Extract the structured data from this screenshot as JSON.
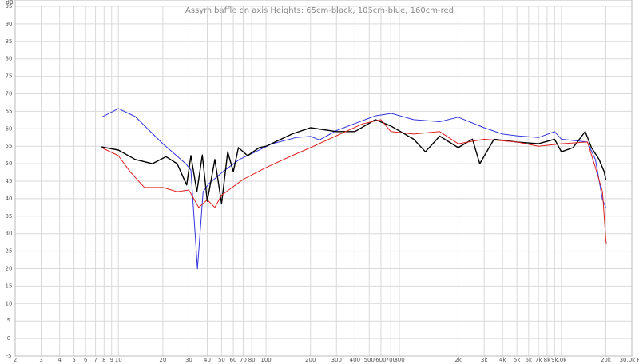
{
  "chart_data": {
    "type": "line",
    "title": "Assym baffle on axis Heights: 65cm-black, 105cm-blue, 160cm-red",
    "y_label": "dB",
    "x_scale": "log",
    "grid": true,
    "xlim": [
      2,
      30000
    ],
    "ylim": [
      -5,
      95
    ],
    "xticks": [
      2,
      3,
      4,
      5,
      6,
      7,
      8,
      9,
      10,
      20,
      30,
      40,
      50,
      60,
      70,
      80,
      100,
      200,
      300,
      400,
      500,
      600,
      700,
      800,
      {
        "value": 2000,
        "label": "2k"
      },
      {
        "value": 3000,
        "label": "3k"
      },
      {
        "value": 4000,
        "label": "4k"
      },
      {
        "value": 5000,
        "label": "5k"
      },
      {
        "value": 6000,
        "label": "6k"
      },
      {
        "value": 7000,
        "label": "7k"
      },
      {
        "value": 8000,
        "label": "8k"
      },
      {
        "value": 9000,
        "label": "9k"
      },
      {
        "value": 10000,
        "label": "10k"
      },
      {
        "value": 20000,
        "label": "20k"
      },
      {
        "value": 30000,
        "label": "30,0k Hz"
      }
    ],
    "yticks": [
      -5,
      0,
      5,
      10,
      15,
      20,
      25,
      30,
      35,
      40,
      45,
      50,
      55,
      60,
      65,
      70,
      75,
      80,
      85,
      90,
      95
    ],
    "series": [
      {
        "color": "#3333dd",
        "x": [
          7.7,
          10,
          13,
          20,
          28.6,
          31,
          34.3,
          37.5,
          41,
          51,
          66,
          85,
          110,
          160,
          200,
          230,
          300,
          400,
          550,
          706,
          1000,
          1500,
          2000,
          3000,
          4000,
          5000,
          7000,
          9000,
          10000,
          15000,
          17000,
          19000,
          20000
        ],
        "values": [
          63.3,
          65.8,
          63.5,
          55.7,
          50,
          48.2,
          19.9,
          42,
          44.3,
          47.7,
          51.2,
          53.4,
          55.7,
          57.5,
          57.8,
          56.8,
          59.5,
          61.5,
          63.7,
          64.4,
          62.6,
          62,
          63.3,
          60.3,
          58.5,
          58,
          57.5,
          59.2,
          57,
          56.2,
          51.2,
          39.7,
          37.5
        ]
      },
      {
        "color": "#000000",
        "x": [
          7.7,
          10,
          13,
          17,
          21,
          25,
          29,
          31,
          34,
          37,
          40,
          45,
          50,
          55,
          60,
          65,
          75,
          90,
          100,
          150,
          200,
          300,
          400,
          550,
          700,
          1000,
          1200,
          1500,
          2000,
          2500,
          2800,
          3500,
          5000,
          7000,
          9000,
          10000,
          12000,
          14500,
          16000,
          18000,
          19500,
          20000
        ],
        "values": [
          54.8,
          53.9,
          51.2,
          50,
          52,
          50,
          43.9,
          52.3,
          42,
          52.5,
          39.3,
          51.2,
          38.6,
          53.4,
          47.7,
          54.6,
          52.3,
          54.6,
          55,
          58.5,
          60.3,
          59.2,
          59.2,
          62.6,
          60.8,
          57,
          53.4,
          57.9,
          54.6,
          57,
          50,
          57,
          56.2,
          55.7,
          57,
          53.4,
          54.6,
          59.2,
          54.6,
          51.2,
          47.7,
          45.5
        ]
      },
      {
        "color": "#dd2222",
        "x": [
          7.7,
          10,
          12,
          15,
          20,
          25,
          30,
          35,
          40,
          45,
          50,
          70,
          100,
          150,
          200,
          300,
          450,
          600,
          700,
          1000,
          1500,
          2000,
          3000,
          5000,
          7000,
          10000,
          15000,
          17000,
          19000,
          20000,
          20200
        ],
        "values": [
          54.6,
          52.3,
          47.7,
          43.2,
          43.2,
          42,
          42.5,
          37.5,
          39.7,
          37.5,
          41,
          45.5,
          48.9,
          52.3,
          54.6,
          58,
          61.4,
          62.6,
          59.2,
          58.5,
          59.2,
          55.7,
          57,
          56.2,
          55,
          55.7,
          56.2,
          48.9,
          42,
          28.3,
          27
        ]
      }
    ]
  }
}
